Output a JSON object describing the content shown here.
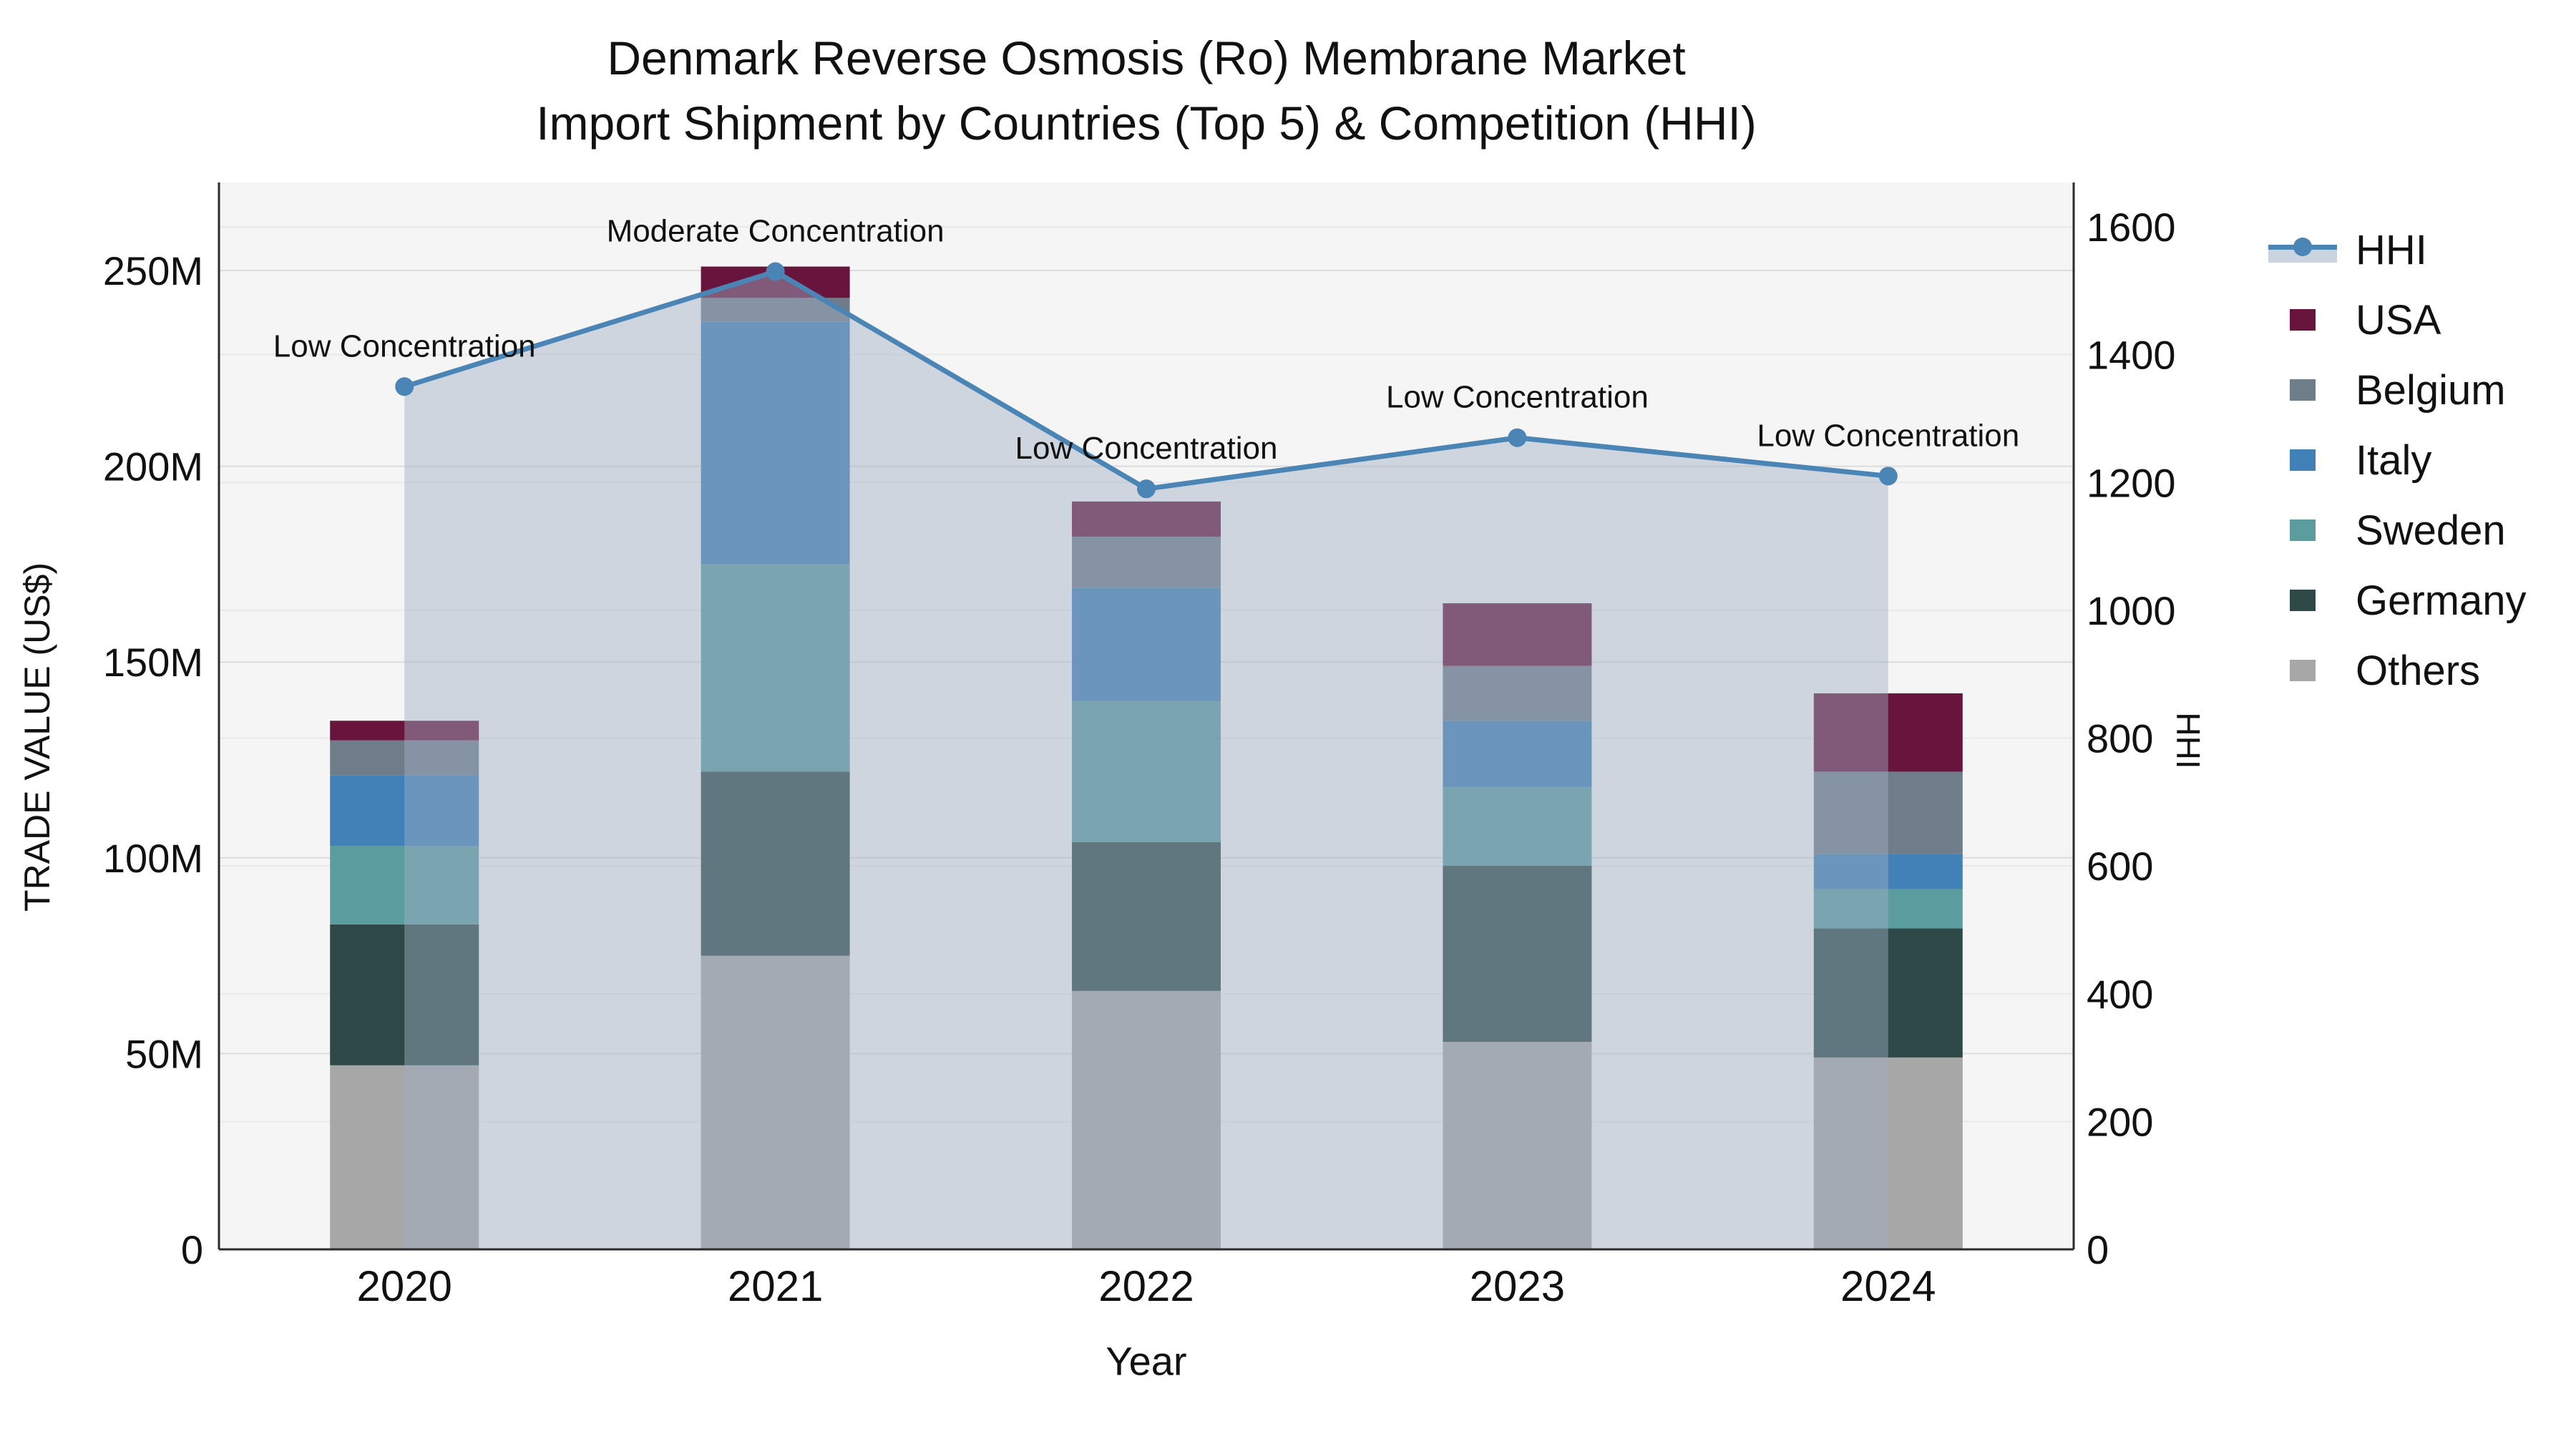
{
  "title": {
    "line1": "Denmark Reverse Osmosis (Ro) Membrane Market",
    "line2": "Import Shipment by Countries (Top 5) & Competition (HHI)"
  },
  "colors": {
    "plot_bg": "#f5f5f5",
    "grid_left": "#dcdcdc",
    "grid_right": "#e9e9e9",
    "axis_line": "#2b2b2b",
    "text": "#111111",
    "hhi_line": "#4a85b5",
    "hhi_area": "#9fb0c6"
  },
  "chart_data": {
    "type": "bar+line",
    "categories": [
      "2020",
      "2021",
      "2022",
      "2023",
      "2024"
    ],
    "axes": {
      "x": {
        "title": "Year"
      },
      "y_left": {
        "title": "TRADE VALUE (US$)",
        "tick_values": [
          0,
          50,
          100,
          150,
          200,
          250
        ],
        "tick_labels": [
          "0",
          "50M",
          "100M",
          "150M",
          "200M",
          "250M"
        ],
        "range": [
          0,
          272
        ],
        "unit": "million US$"
      },
      "y_right": {
        "title": "HHI",
        "tick_values": [
          0,
          200,
          400,
          600,
          800,
          1000,
          1200,
          1400,
          1600
        ],
        "tick_labels": [
          "0",
          "200",
          "400",
          "600",
          "800",
          "1000",
          "1200",
          "1400",
          "1600"
        ],
        "range": [
          0,
          1600
        ]
      }
    },
    "stack_bottom_to_top": [
      "Others",
      "Germany",
      "Sweden",
      "Italy",
      "Belgium",
      "USA"
    ],
    "series": [
      {
        "name": "USA",
        "color": "#68143c",
        "values": [
          5,
          8,
          9,
          16,
          20
        ]
      },
      {
        "name": "Belgium",
        "color": "#6f7d8b",
        "values": [
          9,
          6,
          13,
          14,
          21
        ]
      },
      {
        "name": "Italy",
        "color": "#4280b8",
        "values": [
          18,
          62,
          29,
          17,
          9
        ]
      },
      {
        "name": "Sweden",
        "color": "#5b9d9e",
        "values": [
          20,
          53,
          36,
          20,
          10
        ]
      },
      {
        "name": "Germany",
        "color": "#2e4947",
        "values": [
          36,
          47,
          38,
          45,
          33
        ]
      },
      {
        "name": "Others",
        "color": "#a7a7a7",
        "values": [
          47,
          75,
          66,
          53,
          49
        ]
      }
    ],
    "bar_totals": [
      135,
      251,
      191,
      165,
      142
    ],
    "hhi": {
      "name": "HHI",
      "values": [
        1350,
        1530,
        1190,
        1270,
        1210
      ],
      "annotations": [
        "Low Concentration",
        "Moderate Concentration",
        "Low Concentration",
        "Low Concentration",
        "Low Concentration"
      ]
    },
    "legend_order": [
      "HHI",
      "USA",
      "Belgium",
      "Italy",
      "Sweden",
      "Germany",
      "Others"
    ],
    "legend_position": "right"
  }
}
